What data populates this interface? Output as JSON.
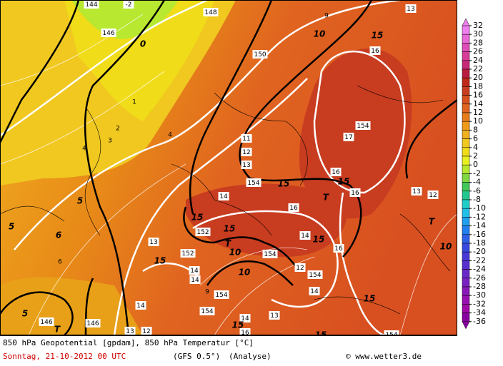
{
  "map": {
    "labels": [
      "144",
      "-2",
      "146",
      "0",
      "148",
      "150",
      "10",
      "15",
      "16",
      "9",
      "13",
      "1",
      "2",
      "3",
      "4",
      "4",
      "11",
      "12",
      "13",
      "17",
      "154",
      "154",
      "15",
      "16",
      "15",
      "T",
      "16",
      "13",
      "12",
      "14",
      "16",
      "15",
      "152",
      "15",
      "T",
      "13",
      "152",
      "15",
      "10",
      "14",
      "15",
      "16",
      "154",
      "10",
      "14",
      "12",
      "14",
      "154",
      "T",
      "10",
      "9",
      "154",
      "14",
      "15",
      "154",
      "13",
      "14",
      "15",
      "16",
      "T",
      "146",
      "146",
      "13",
      "12",
      "15",
      "154",
      "5",
      "5",
      "6",
      "6",
      "5",
      "14"
    ]
  },
  "colorbar": {
    "values": [
      32,
      30,
      28,
      26,
      24,
      22,
      20,
      18,
      16,
      14,
      12,
      10,
      8,
      6,
      4,
      2,
      0,
      -2,
      -4,
      -6,
      -8,
      -10,
      -12,
      -14,
      -16,
      -18,
      -20,
      -22,
      -24,
      -26,
      -28,
      -30,
      -32,
      -34,
      -36
    ],
    "colors": [
      "#f07ef0",
      "#e868d8",
      "#e04cb8",
      "#d83c98",
      "#c82878",
      "#b81c40",
      "#c02818",
      "#c83c20",
      "#d85020",
      "#e06420",
      "#e87c18",
      "#f09818",
      "#f0b020",
      "#f0c820",
      "#f0dc18",
      "#e8f020",
      "#b8e830",
      "#80d840",
      "#40c858",
      "#20c890",
      "#20d0c8",
      "#20c0e8",
      "#20a0f0",
      "#2080f0",
      "#3060e8",
      "#3848e0",
      "#4838d8",
      "#5830d0",
      "#6828c8",
      "#7820c0",
      "#8818b8",
      "#9810b0",
      "#a008a8",
      "#8800a0"
    ]
  },
  "footer": {
    "title": "850 hPa Geopotential [gpdam], 850 hPa Temperatur [°C]",
    "date": "Sonntag, 21-10-2012  00 UTC",
    "model": "(GFS 0.5°)",
    "run": "(Analyse)",
    "credit": "© www.wetter3.de"
  }
}
